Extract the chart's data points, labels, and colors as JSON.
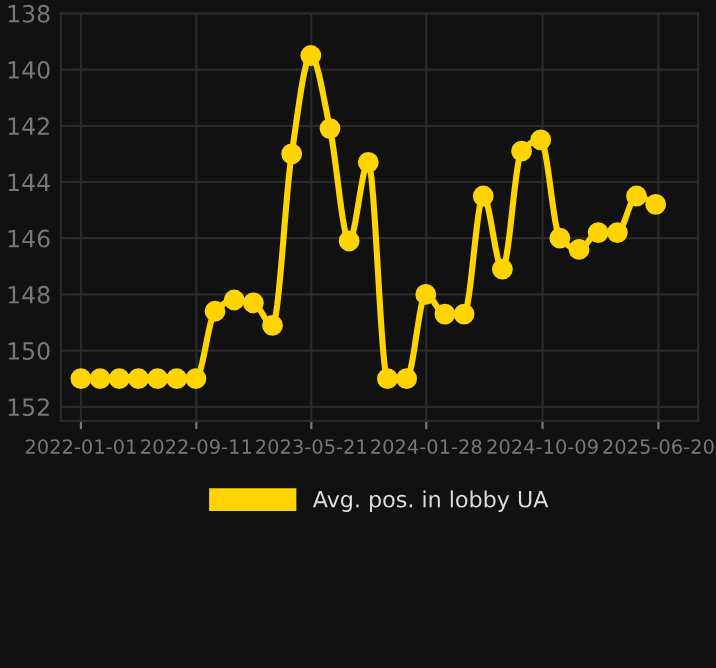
{
  "chart_data": {
    "type": "line",
    "x": [
      "2022-01-01",
      "2022-02-12",
      "2022-03-26",
      "2022-05-07",
      "2022-06-18",
      "2022-07-30",
      "2022-09-10",
      "2022-10-22",
      "2022-12-03",
      "2023-01-14",
      "2023-02-25",
      "2023-04-08",
      "2023-05-20",
      "2023-07-01",
      "2023-08-12",
      "2023-09-23",
      "2023-11-04",
      "2023-12-16",
      "2024-01-27",
      "2024-03-09",
      "2024-04-20",
      "2024-06-01",
      "2024-07-13",
      "2024-08-24",
      "2024-10-05",
      "2024-11-16",
      "2024-12-28",
      "2025-02-08",
      "2025-03-22",
      "2025-05-03",
      "2025-06-14"
    ],
    "series": [
      {
        "name": "Avg. pos. in lobby UA",
        "color": "#ffd400",
        "values": [
          151,
          151,
          151,
          151,
          151,
          151,
          151,
          148.6,
          148.2,
          148.3,
          149.1,
          143.0,
          139.5,
          142.1,
          146.1,
          143.3,
          151,
          151,
          148.0,
          148.7,
          148.7,
          144.5,
          147.1,
          142.9,
          142.5,
          146.0,
          146.4,
          145.8,
          145.8,
          144.5,
          144.8
        ]
      }
    ],
    "xlim": [
      "2021-11-18",
      "2025-09-15"
    ],
    "xticks": [
      {
        "value": "2022-01-01",
        "label": "2022-01-01"
      },
      {
        "value": "2022-09-11",
        "label": "2022-09-11"
      },
      {
        "value": "2023-05-21",
        "label": "2023-05-21"
      },
      {
        "value": "2024-01-28",
        "label": "2024-01-28"
      },
      {
        "value": "2024-10-09",
        "label": "2024-10-09"
      },
      {
        "value": "2025-06-20",
        "label": "2025-06-20"
      }
    ],
    "ylim": [
      152.5,
      138
    ],
    "yticks": [
      138,
      140,
      142,
      144,
      146,
      148,
      150,
      152
    ],
    "grid": true,
    "legend": "bottom",
    "marker": "circle",
    "line_style": "solid"
  }
}
